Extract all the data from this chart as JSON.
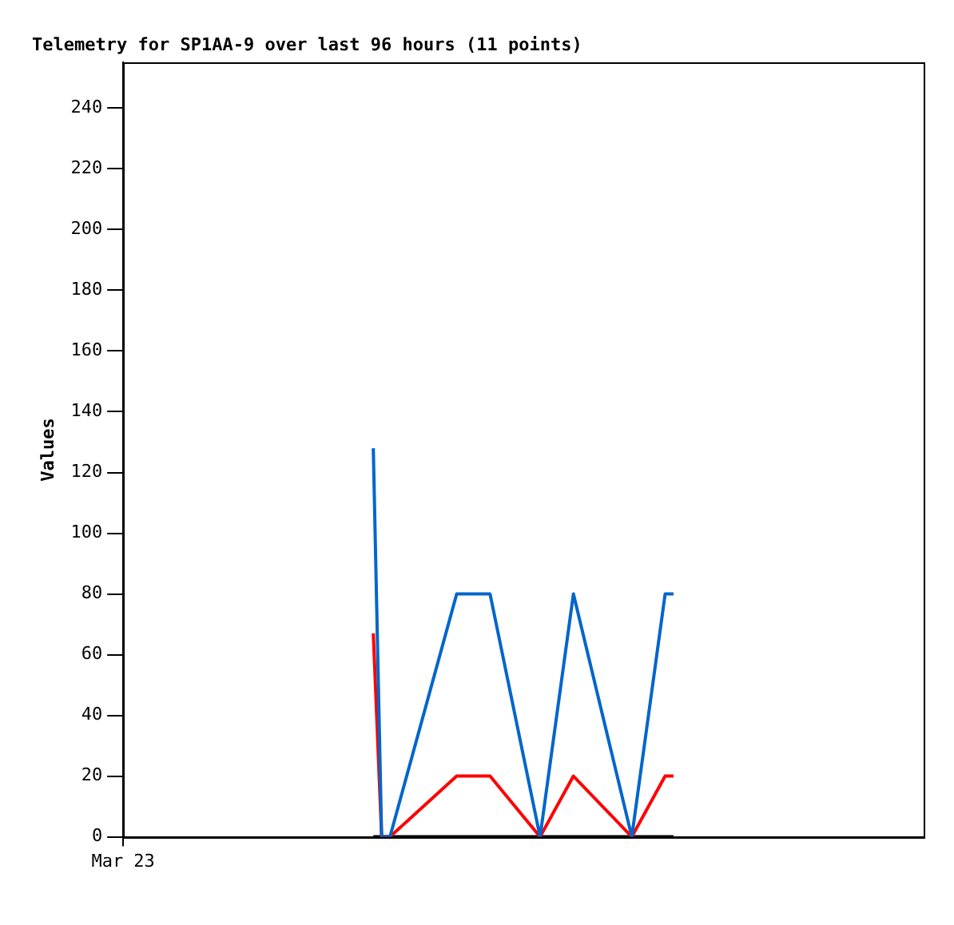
{
  "chart_data": {
    "type": "line",
    "title": "Telemetry for SP1AA-9 over last 96 hours (11 points)",
    "ylabel": "Values",
    "categories": [
      "Mar 23",
      null,
      null,
      null,
      null,
      null,
      null,
      null,
      null,
      null,
      null,
      null,
      null,
      null,
      null,
      null,
      null,
      null,
      null,
      null,
      null,
      null,
      null,
      null,
      null,
      null,
      null,
      null,
      null,
      null,
      null,
      null,
      null,
      null,
      null,
      null,
      null,
      null,
      null,
      null,
      null,
      null,
      null,
      null,
      null,
      null,
      null,
      null,
      null,
      null,
      null,
      null,
      null,
      null,
      null,
      null,
      null,
      null,
      null,
      null,
      null,
      null,
      null,
      null,
      null,
      null,
      null,
      null,
      null,
      null,
      null,
      null,
      null,
      null,
      null,
      null,
      null,
      null,
      null,
      null,
      null,
      null,
      null,
      null,
      null,
      null,
      null,
      null,
      null,
      null,
      null,
      null,
      null,
      null,
      null,
      null,
      null
    ],
    "series": [
      {
        "color": "#0066cc",
        "values": [
          null,
          null,
          null,
          null,
          null,
          null,
          null,
          null,
          null,
          null,
          null,
          null,
          null,
          null,
          null,
          null,
          null,
          null,
          null,
          null,
          null,
          null,
          null,
          null,
          null,
          null,
          null,
          null,
          null,
          null,
          128,
          0,
          0,
          null,
          null,
          null,
          null,
          null,
          null,
          null,
          80,
          null,
          null,
          null,
          80,
          null,
          null,
          null,
          null,
          null,
          0,
          null,
          null,
          null,
          80,
          null,
          null,
          null,
          null,
          null,
          null,
          0,
          null,
          null,
          null,
          80,
          80,
          null,
          null,
          null,
          null,
          null,
          null,
          null,
          null,
          null,
          null,
          null,
          null,
          null,
          null,
          null,
          null,
          null,
          null,
          null,
          null,
          null,
          null,
          null,
          null,
          null,
          null,
          null,
          null,
          null,
          null
        ]
      },
      {
        "color": "#ff0000",
        "values": [
          null,
          null,
          null,
          null,
          null,
          null,
          null,
          null,
          null,
          null,
          null,
          null,
          null,
          null,
          null,
          null,
          null,
          null,
          null,
          null,
          null,
          null,
          null,
          null,
          null,
          null,
          null,
          null,
          null,
          null,
          67,
          0,
          0,
          null,
          null,
          null,
          null,
          null,
          null,
          null,
          20,
          null,
          null,
          null,
          20,
          null,
          null,
          null,
          null,
          null,
          0,
          null,
          null,
          null,
          20,
          null,
          null,
          null,
          null,
          null,
          null,
          0,
          null,
          null,
          null,
          20,
          20,
          null,
          null,
          null,
          null,
          null,
          null,
          null,
          null,
          null,
          null,
          null,
          null,
          null,
          null,
          null,
          null,
          null,
          null,
          null,
          null,
          null,
          null,
          null,
          null,
          null,
          null,
          null,
          null,
          null,
          null
        ]
      },
      {
        "color": "#000000",
        "values": [
          null,
          null,
          null,
          null,
          null,
          null,
          null,
          null,
          null,
          null,
          null,
          null,
          null,
          null,
          null,
          null,
          null,
          null,
          null,
          null,
          null,
          null,
          null,
          null,
          null,
          null,
          null,
          null,
          null,
          null,
          0,
          0,
          0,
          null,
          null,
          null,
          null,
          null,
          null,
          null,
          0,
          null,
          null,
          null,
          0,
          null,
          null,
          null,
          null,
          null,
          0,
          null,
          null,
          null,
          0,
          null,
          null,
          null,
          null,
          null,
          null,
          0,
          null,
          null,
          null,
          0,
          0,
          null,
          null,
          null,
          null,
          null,
          null,
          null,
          null,
          null,
          null,
          null,
          null,
          null,
          null,
          null,
          null,
          null,
          null,
          null,
          null,
          null,
          null,
          null,
          null,
          null,
          null,
          null,
          null,
          null,
          null
        ]
      }
    ],
    "ylim": [
      0,
      255
    ],
    "yticks": [
      0,
      20,
      40,
      60,
      80,
      100,
      120,
      140,
      160,
      180,
      200,
      220,
      240
    ],
    "grid": false,
    "legend": false,
    "marker": "none",
    "line_style": "solid"
  }
}
